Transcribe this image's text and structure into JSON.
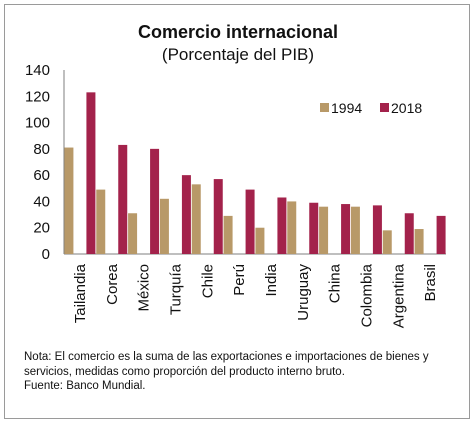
{
  "chart_data": {
    "type": "bar",
    "title": "Comercio internacional",
    "subtitle": "(Porcentaje del PIB)",
    "categories": [
      "Tailandia",
      "Corea",
      "México",
      "Turquía",
      "Chile",
      "Perú",
      "India",
      "Uruguay",
      "China",
      "Colombia",
      "Argentina",
      "Brasil"
    ],
    "series": [
      {
        "name": "1994",
        "values": [
          81,
          49,
          31,
          42,
          53,
          29,
          20,
          40,
          36,
          36,
          18,
          19
        ]
      },
      {
        "name": "2018",
        "values": [
          123,
          83,
          80,
          60,
          57,
          49,
          43,
          39,
          38,
          37,
          31,
          29
        ]
      }
    ],
    "ylim": [
      0,
      140
    ],
    "yticks": [
      0,
      20,
      40,
      60,
      80,
      100,
      120,
      140
    ],
    "grid": false,
    "legend": "top-right",
    "colors": {
      "1994": "#b89968",
      "2018": "#a3224b"
    }
  },
  "note": "Nota: El comercio es la suma de las exportaciones e importaciones de bienes y servicios, medidas como proporción del producto interno bruto.",
  "source": "Fuente: Banco Mundial."
}
